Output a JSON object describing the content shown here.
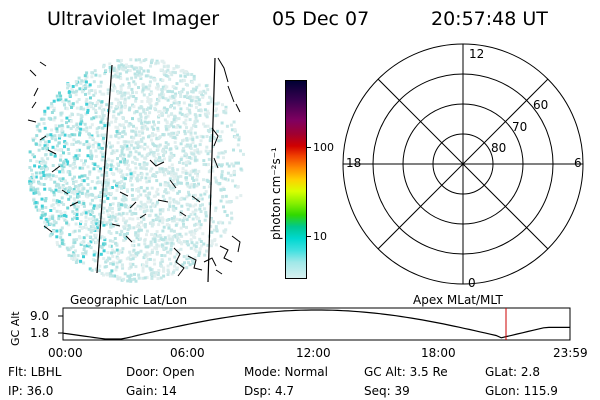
{
  "header": {
    "instrument": "Ultraviolet Imager",
    "date": "05 Dec 07",
    "time": "20:57:48 UT"
  },
  "image_panel": {
    "label": "Geographic Lat/Lon"
  },
  "colorbar": {
    "unit_label": "photon cm⁻²s⁻¹",
    "tick_labels": [
      "100",
      "10"
    ],
    "scale": "log",
    "colors_top_to_bottom": [
      "#000033",
      "#3a0050",
      "#800060",
      "#a00030",
      "#d00000",
      "#f04000",
      "#ff8a00",
      "#ffd000",
      "#d8ff00",
      "#88f000",
      "#30d800",
      "#00c890",
      "#00d8d0",
      "#40e0e0",
      "#a0e8e8",
      "#d8f0f0"
    ]
  },
  "polar_grid": {
    "label": "Apex MLat/MLT",
    "mlt_labels": {
      "top": "12",
      "left": "18",
      "right": "6",
      "bottom": "0"
    },
    "lat_labels": [
      "60",
      "70",
      "80"
    ]
  },
  "altitude_plot": {
    "ylabel": "GC Alt",
    "yticks": [
      "9.0",
      "1.8"
    ],
    "xticks": [
      "00:00",
      "06:00",
      "12:00",
      "18:00",
      "23:59"
    ],
    "current_time_hours": 20.97,
    "line_color": "#000000",
    "marker_color": "#cc0000"
  },
  "info": {
    "flt": "Flt: LBHL",
    "door": "Door: Open",
    "mode": "Mode: Normal",
    "gc_alt": "GC Alt: 3.5 Re",
    "glat": "GLat:   2.8",
    "ip": "IP: 36.0",
    "gain": "Gain: 14",
    "dsp": "Dsp:     4.7",
    "seq": "Seq: 39",
    "glon": "GLon: 115.9"
  }
}
